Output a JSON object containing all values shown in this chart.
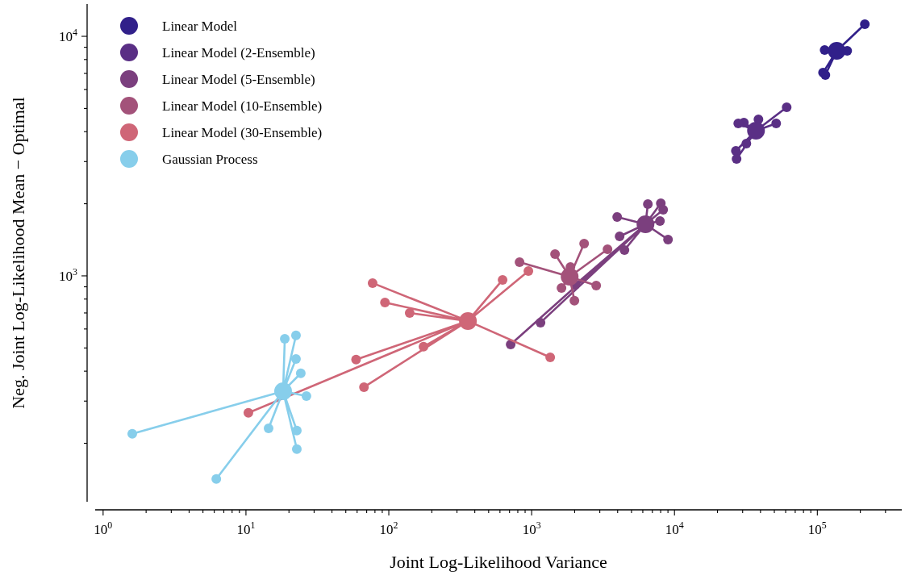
{
  "chart_data": {
    "type": "scatter",
    "xlabel": "Joint Log-Likelihood Variance",
    "ylabel": "Neg. Joint Log-Likelihood Mean − Optimal",
    "log": "xy",
    "legend": "top left",
    "marker": "circle",
    "line_style": "solid",
    "xlim": [
      0.88,
      390000
    ],
    "ylim": [
      114,
      13640
    ],
    "xticks": [
      {
        "value": 1,
        "label": "10$^{0}$"
      },
      {
        "value": 2,
        "label": null
      },
      {
        "value": 3,
        "label": null
      },
      {
        "value": 4,
        "label": null
      },
      {
        "value": 5,
        "label": null
      },
      {
        "value": 6,
        "label": null
      },
      {
        "value": 7,
        "label": null
      },
      {
        "value": 8,
        "label": null
      },
      {
        "value": 9,
        "label": null
      },
      {
        "value": 10,
        "label": "10$^{1}$"
      },
      {
        "value": 20,
        "label": null
      },
      {
        "value": 30,
        "label": null
      },
      {
        "value": 40,
        "label": null
      },
      {
        "value": 50,
        "label": null
      },
      {
        "value": 60,
        "label": null
      },
      {
        "value": 70,
        "label": null
      },
      {
        "value": 80,
        "label": null
      },
      {
        "value": 90,
        "label": null
      },
      {
        "value": 100,
        "label": "10$^{2}$"
      },
      {
        "value": 200,
        "label": null
      },
      {
        "value": 300,
        "label": null
      },
      {
        "value": 400,
        "label": null
      },
      {
        "value": 500,
        "label": null
      },
      {
        "value": 600,
        "label": null
      },
      {
        "value": 700,
        "label": null
      },
      {
        "value": 800,
        "label": null
      },
      {
        "value": 900,
        "label": null
      },
      {
        "value": 1000,
        "label": "10$^{3}$"
      },
      {
        "value": 2000,
        "label": null
      },
      {
        "value": 3000,
        "label": null
      },
      {
        "value": 4000,
        "label": null
      },
      {
        "value": 5000,
        "label": null
      },
      {
        "value": 6000,
        "label": null
      },
      {
        "value": 7000,
        "label": null
      },
      {
        "value": 8000,
        "label": null
      },
      {
        "value": 9000,
        "label": null
      },
      {
        "value": 10000,
        "label": "10$^{4}$"
      },
      {
        "value": 20000,
        "label": null
      },
      {
        "value": 30000,
        "label": null
      },
      {
        "value": 40000,
        "label": null
      },
      {
        "value": 50000,
        "label": null
      },
      {
        "value": 60000,
        "label": null
      },
      {
        "value": 70000,
        "label": null
      },
      {
        "value": 80000,
        "label": null
      },
      {
        "value": 90000,
        "label": null
      },
      {
        "value": 100000,
        "label": "10$^{5}$"
      },
      {
        "value": 200000,
        "label": null
      },
      {
        "value": 300000,
        "label": null
      }
    ],
    "yticks": [
      {
        "value": 200,
        "label": null
      },
      {
        "value": 300,
        "label": null
      },
      {
        "value": 400,
        "label": null
      },
      {
        "value": 500,
        "label": null
      },
      {
        "value": 600,
        "label": null
      },
      {
        "value": 700,
        "label": null
      },
      {
        "value": 800,
        "label": null
      },
      {
        "value": 900,
        "label": null
      },
      {
        "value": 1000,
        "label": "10$^{3}$"
      },
      {
        "value": 2000,
        "label": null
      },
      {
        "value": 3000,
        "label": null
      },
      {
        "value": 4000,
        "label": null
      },
      {
        "value": 5000,
        "label": null
      },
      {
        "value": 6000,
        "label": null
      },
      {
        "value": 7000,
        "label": null
      },
      {
        "value": 8000,
        "label": null
      },
      {
        "value": 9000,
        "label": null
      },
      {
        "value": 10000,
        "label": "10$^{4}$"
      }
    ],
    "series": [
      {
        "color": "#31208a",
        "type": "line",
        "marker": "none",
        "x": [
          136700,
          215000,
          136700,
          112500,
          136700,
          161800,
          136700,
          109600,
          136700,
          113800
        ],
        "values": [
          8700,
          11240,
          8700,
          8770,
          8700,
          8700,
          8700,
          7050,
          8700,
          6890
        ]
      },
      {
        "name": "Linear Model",
        "color": "#31208a",
        "type": "scatter",
        "x": [
          215000,
          112500,
          161800,
          109600,
          113800
        ],
        "values": [
          11240,
          8770,
          8700,
          7050,
          6890
        ]
      },
      {
        "color": "#31208a",
        "type": "bubble",
        "x": [
          136700
        ],
        "values": [
          8700
        ]
      },
      {
        "color": "#5a2f85",
        "type": "line",
        "marker": "none",
        "x": [
          37200,
          61000,
          37200,
          30600,
          37200,
          27950,
          37200,
          38700,
          37200,
          51500,
          37200,
          31850,
          37200,
          26900,
          37200,
          27200
        ],
        "values": [
          4036,
          5054,
          4036,
          4363,
          4036,
          4328,
          4036,
          4498,
          4036,
          4328,
          4036,
          3565,
          4036,
          3326,
          4036,
          3078
        ]
      },
      {
        "name": "Linear Model (2-Ensemble)",
        "color": "#5a2f85",
        "type": "scatter",
        "x": [
          61000,
          30600,
          27950,
          38700,
          51500,
          31850,
          26900,
          27200
        ],
        "values": [
          5054,
          4363,
          4328,
          4498,
          4328,
          3565,
          3326,
          3078
        ]
      },
      {
        "color": "#5a2f85",
        "type": "bubble",
        "x": [
          37200
        ],
        "values": [
          4036
        ]
      },
      {
        "color": "#7b3f7e",
        "type": "line",
        "marker": "none",
        "x": [
          6265,
          3970,
          6265,
          6510,
          6265,
          8020,
          6265,
          8330,
          6265,
          7910,
          6265,
          9010,
          6265,
          4465,
          6265,
          4130,
          6265,
          2018,
          6265,
          1154,
          6265,
          713
        ],
        "values": [
          1642,
          1762,
          1642,
          1994,
          1642,
          2009,
          1642,
          1888,
          1642,
          1694,
          1642,
          1418,
          1642,
          1282,
          1642,
          1462,
          1642,
          918,
          1642,
          638,
          1642,
          517
        ]
      },
      {
        "name": "Linear Model (5-Ensemble)",
        "color": "#7b3f7e",
        "type": "scatter",
        "x": [
          3970,
          6510,
          8020,
          8330,
          7910,
          9010,
          4465,
          4130,
          2018,
          1154,
          713
        ],
        "values": [
          1762,
          1994,
          2009,
          1888,
          1694,
          1418,
          1282,
          1462,
          918,
          638,
          517
        ]
      },
      {
        "color": "#7b3f7e",
        "type": "bubble",
        "x": [
          6265
        ],
        "values": [
          1642
        ]
      },
      {
        "color": "#a3527a",
        "type": "line",
        "marker": "none",
        "x": [
          1845,
          823,
          1845,
          1458,
          1845,
          2330,
          1845,
          3398,
          1845,
          2831,
          1845,
          1992,
          1845,
          1618,
          1845,
          1868
        ],
        "values": [
          992,
          1141,
          992,
          1233,
          992,
          1364,
          992,
          1291,
          992,
          911,
          992,
          787,
          992,
          890,
          992,
          1089
        ]
      },
      {
        "name": "Linear Model (10-Ensemble)",
        "color": "#a3527a",
        "type": "scatter",
        "x": [
          823,
          1458,
          2330,
          3398,
          2831,
          1992,
          1618,
          1868
        ],
        "values": [
          1141,
          1233,
          1364,
          1291,
          911,
          787,
          890,
          1089
        ]
      },
      {
        "color": "#a3527a",
        "type": "bubble",
        "x": [
          1845
        ],
        "values": [
          992
        ]
      },
      {
        "color": "#cf6677",
        "type": "line",
        "marker": "none",
        "x": [
          358,
          77,
          358,
          94,
          358,
          140,
          358,
          626,
          358,
          949,
          358,
          1349,
          358,
          59,
          358,
          67,
          358,
          175,
          358,
          10.4
        ],
        "values": [
          648,
          933,
          648,
          774,
          648,
          700,
          648,
          962,
          648,
          1047,
          648,
          457,
          648,
          447,
          648,
          343,
          648,
          506,
          648,
          268
        ]
      },
      {
        "name": "Linear Model (30-Ensemble)",
        "color": "#cf6677",
        "type": "scatter",
        "x": [
          77,
          94,
          140,
          626,
          949,
          1349,
          59,
          67,
          175,
          10.4
        ],
        "values": [
          933,
          774,
          700,
          962,
          1047,
          457,
          447,
          343,
          506,
          268
        ]
      },
      {
        "color": "#cf6677",
        "type": "bubble",
        "x": [
          358
        ],
        "values": [
          648
        ]
      },
      {
        "color": "#87ceeb",
        "type": "line",
        "marker": "none",
        "x": [
          18.2,
          1.6,
          18.2,
          6.2,
          18.2,
          14.4,
          18.2,
          22.7,
          18.2,
          22.7,
          18.2,
          26.5,
          18.2,
          24.2,
          18.2,
          22.4,
          18.2,
          18.7,
          18.2,
          22.4
        ],
        "values": [
          330,
          219,
          330,
          142,
          330,
          231,
          330,
          226,
          330,
          189,
          330,
          315,
          330,
          392,
          330,
          450,
          330,
          546,
          330,
          564
        ]
      },
      {
        "name": "Gaussian Process",
        "color": "#87ceeb",
        "type": "scatter",
        "x": [
          1.6,
          6.2,
          14.4,
          22.7,
          22.7,
          26.5,
          24.2,
          22.4,
          18.7,
          22.4
        ],
        "values": [
          219,
          142,
          231,
          226,
          189,
          315,
          392,
          450,
          546,
          564
        ]
      },
      {
        "color": "#87ceeb",
        "type": "bubble",
        "x": [
          18.2
        ],
        "values": [
          330
        ]
      }
    ]
  }
}
